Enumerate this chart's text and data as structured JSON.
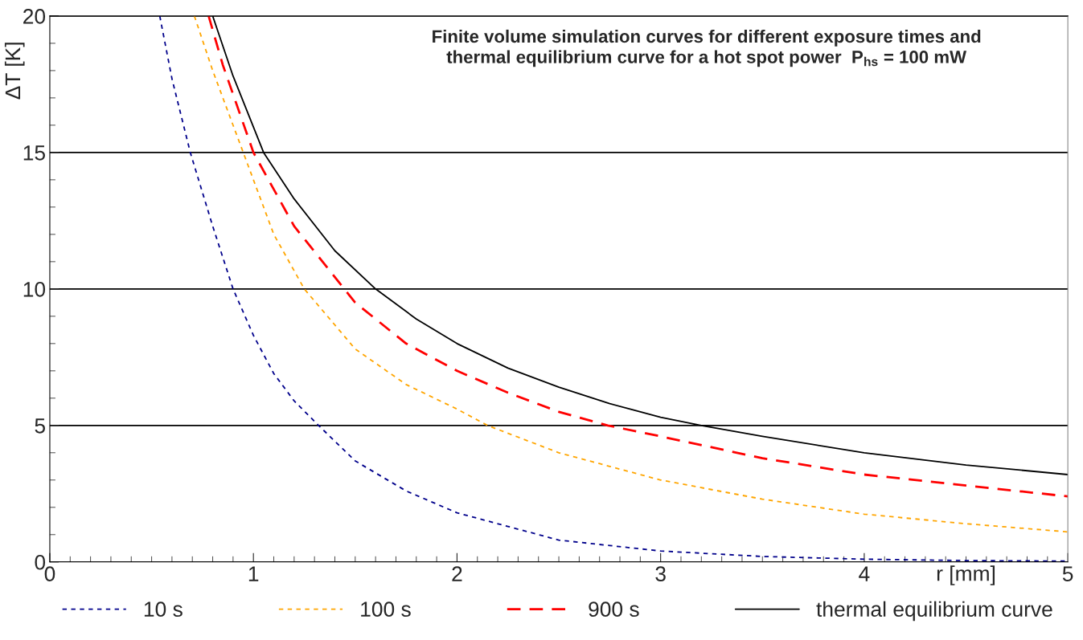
{
  "chart_data": {
    "type": "line",
    "title": "Finite volume simulation curves for different exposure times and\nthermal equilibrium curve for a hot spot power  P$_{hs}$ = 100 mW",
    "xlabel": "r [mm]",
    "ylabel": "ΔT [K]",
    "xlim": [
      0,
      5
    ],
    "ylim": [
      0,
      20
    ],
    "xticks": [
      0,
      1,
      2,
      3,
      4,
      5
    ],
    "yticks": [
      0,
      5,
      10,
      15,
      20
    ],
    "grid": "y",
    "legend": "bottom",
    "series": [
      {
        "name": "10 s",
        "color": "#00008b",
        "line_style": "dotted",
        "x": [
          0.54,
          0.6,
          0.69,
          0.8,
          0.9,
          1.0,
          1.1,
          1.2,
          1.32,
          1.5,
          1.75,
          2.0,
          2.25,
          2.5,
          2.75,
          3.0,
          3.5,
          4.0,
          4.5,
          5.0
        ],
        "values": [
          20,
          17.7,
          15,
          12.3,
          10,
          8.3,
          6.9,
          5.9,
          5,
          3.7,
          2.6,
          1.8,
          1.3,
          0.8,
          0.6,
          0.4,
          0.2,
          0.1,
          0.05,
          0.03
        ]
      },
      {
        "name": "100 s",
        "color": "#ffa500",
        "line_style": "dotted",
        "x": [
          0.71,
          0.8,
          0.95,
          1.1,
          1.25,
          1.5,
          1.75,
          2.0,
          2.15,
          2.5,
          2.75,
          3.0,
          3.5,
          4.0,
          4.5,
          5.0
        ],
        "values": [
          20,
          18,
          15,
          12,
          10,
          7.8,
          6.5,
          5.6,
          5,
          4.0,
          3.5,
          3.0,
          2.3,
          1.75,
          1.4,
          1.1
        ]
      },
      {
        "name": "900 s",
        "color": "#ff0000",
        "line_style": "dashed",
        "x": [
          0.78,
          0.85,
          1.0,
          1.2,
          1.5,
          1.75,
          2.0,
          2.25,
          2.5,
          2.74,
          3.0,
          3.5,
          4.0,
          4.5,
          5.0
        ],
        "values": [
          20,
          18.2,
          15,
          12.3,
          9.5,
          8.0,
          7.0,
          6.2,
          5.5,
          5.0,
          4.6,
          3.8,
          3.2,
          2.8,
          2.4
        ]
      },
      {
        "name": "thermal equilibrium curve",
        "color": "#000000",
        "line_style": "solid",
        "x": [
          0.8,
          0.9,
          1.05,
          1.2,
          1.4,
          1.6,
          1.8,
          2.0,
          2.25,
          2.5,
          2.75,
          3.0,
          3.2,
          3.5,
          4.0,
          4.5,
          5.0
        ],
        "values": [
          20,
          17.8,
          15,
          13.3,
          11.4,
          10,
          8.9,
          8.0,
          7.1,
          6.4,
          5.8,
          5.3,
          5,
          4.6,
          4.0,
          3.55,
          3.2
        ]
      }
    ]
  }
}
